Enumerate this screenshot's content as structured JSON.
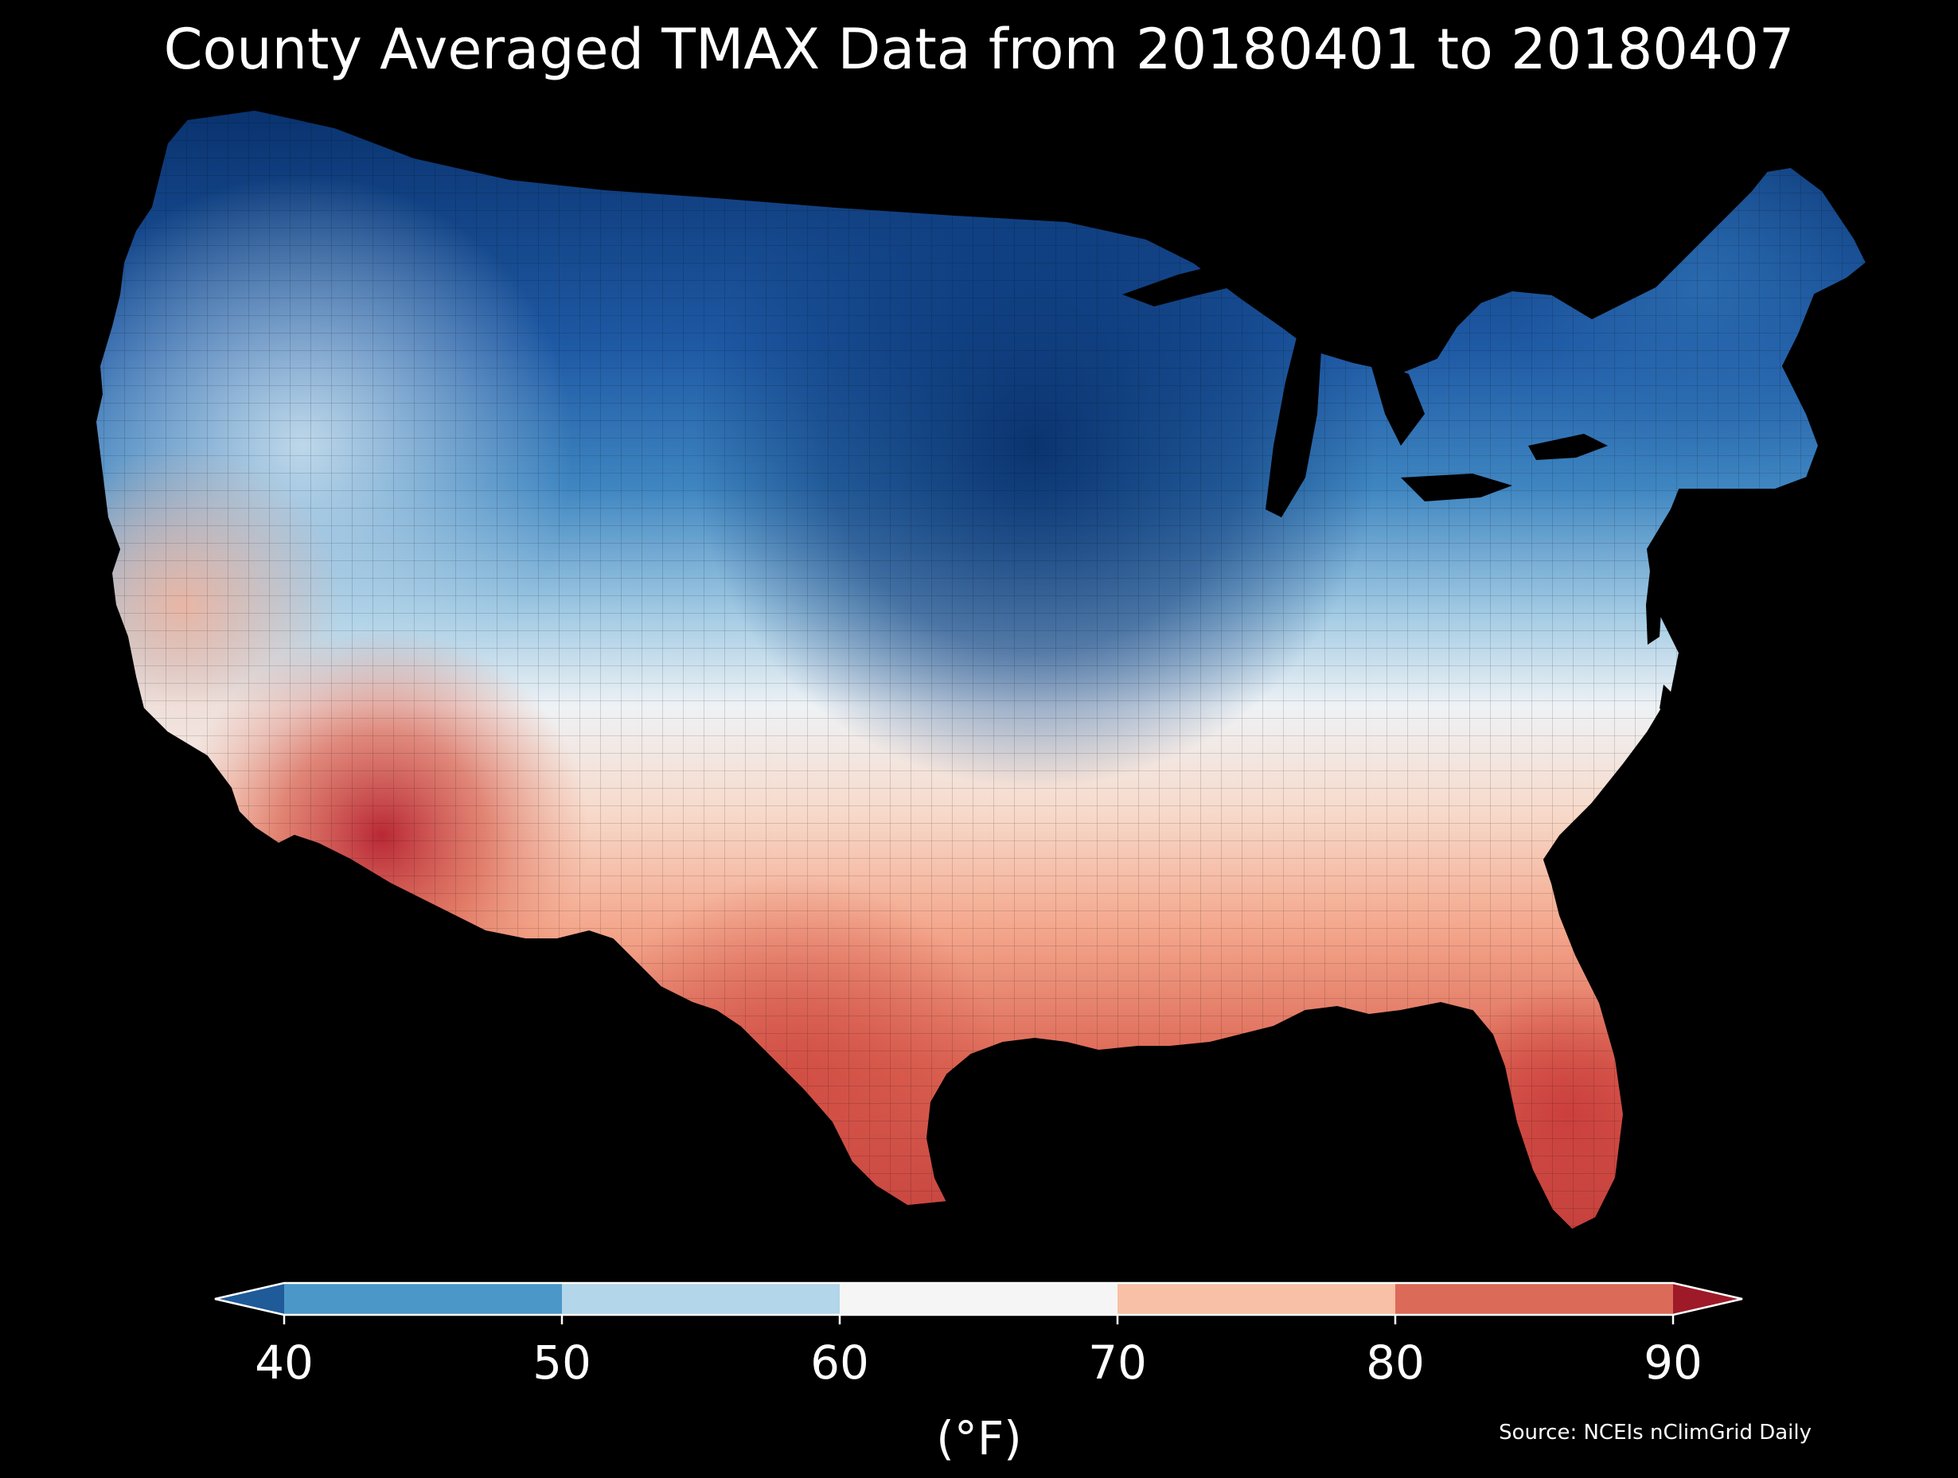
{
  "title": "County Averaged TMAX Data from 20180401 to 20180407",
  "source": "Source: NCEIs nClimGrid Daily",
  "colorbar": {
    "label": "(°F)",
    "ticks": [
      "40",
      "50",
      "60",
      "70",
      "80",
      "90"
    ],
    "extend": "both",
    "under_color": "#1f5a99",
    "over_color": "#9e1a28",
    "bins": [
      {
        "from": 40,
        "to": 50,
        "color": "#4a97c8"
      },
      {
        "from": 50,
        "to": 60,
        "color": "#b3d6ea"
      },
      {
        "from": 60,
        "to": 70,
        "color": "#f5f5f5"
      },
      {
        "from": 70,
        "to": 80,
        "color": "#f8c0a6"
      },
      {
        "from": 80,
        "to": 90,
        "color": "#dc6a58"
      }
    ]
  },
  "map": {
    "region": "Contiguous United States",
    "unit": "county",
    "variable": "TMAX",
    "background_color": "#000000",
    "regional_pattern": [
      {
        "region": "northern plains / upper midwest",
        "approx_value_f": 36,
        "color": "#08306b"
      },
      {
        "region": "northern rockies / great lakes",
        "approx_value_f": 44,
        "color": "#2b6cb0"
      },
      {
        "region": "new england",
        "approx_value_f": 46,
        "color": "#3a7fbf"
      },
      {
        "region": "pacific northwest / great basin",
        "approx_value_f": 55,
        "color": "#a9cde5"
      },
      {
        "region": "central plains / ohio valley / mid-atlantic",
        "approx_value_f": 63,
        "color": "#eef3f7"
      },
      {
        "region": "southeast / lower mississippi",
        "approx_value_f": 74,
        "color": "#f6b197"
      },
      {
        "region": "texas / gulf coast / florida",
        "approx_value_f": 82,
        "color": "#d9604d"
      },
      {
        "region": "southern arizona / california desert",
        "approx_value_f": 88,
        "color": "#b82530"
      }
    ]
  }
}
